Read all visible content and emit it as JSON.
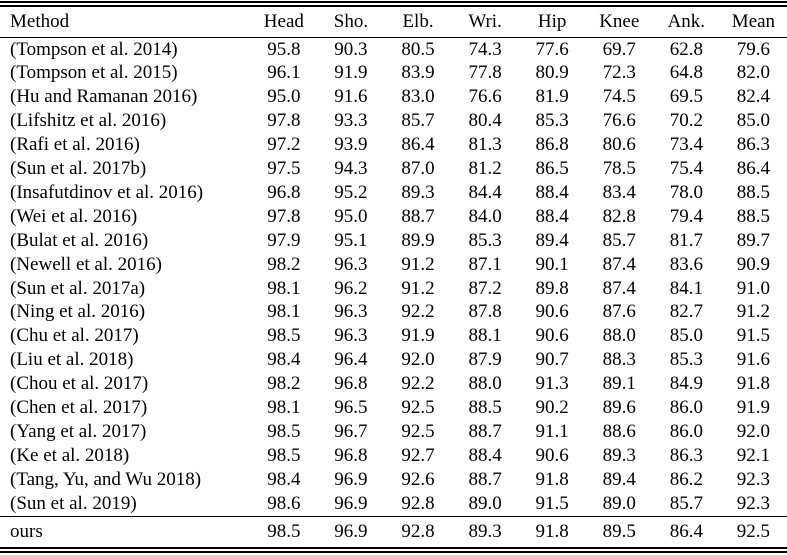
{
  "table": {
    "columns": [
      "Method",
      "Head",
      "Sho.",
      "Elb.",
      "Wri.",
      "Hip",
      "Knee",
      "Ank.",
      "Mean"
    ],
    "rows": [
      {
        "method": "(Tompson et al. 2014)",
        "values": [
          "95.8",
          "90.3",
          "80.5",
          "74.3",
          "77.6",
          "69.7",
          "62.8",
          "79.6"
        ]
      },
      {
        "method": "(Tompson et al. 2015)",
        "values": [
          "96.1",
          "91.9",
          "83.9",
          "77.8",
          "80.9",
          "72.3",
          "64.8",
          "82.0"
        ]
      },
      {
        "method": "(Hu and Ramanan 2016)",
        "values": [
          "95.0",
          "91.6",
          "83.0",
          "76.6",
          "81.9",
          "74.5",
          "69.5",
          "82.4"
        ]
      },
      {
        "method": "(Lifshitz et al. 2016)",
        "values": [
          "97.8",
          "93.3",
          "85.7",
          "80.4",
          "85.3",
          "76.6",
          "70.2",
          "85.0"
        ]
      },
      {
        "method": "(Rafi et al. 2016)",
        "values": [
          "97.2",
          "93.9",
          "86.4",
          "81.3",
          "86.8",
          "80.6",
          "73.4",
          "86.3"
        ]
      },
      {
        "method": "(Sun et al. 2017b)",
        "values": [
          "97.5",
          "94.3",
          "87.0",
          "81.2",
          "86.5",
          "78.5",
          "75.4",
          "86.4"
        ]
      },
      {
        "method": "(Insafutdinov et al. 2016)",
        "values": [
          "96.8",
          "95.2",
          "89.3",
          "84.4",
          "88.4",
          "83.4",
          "78.0",
          "88.5"
        ]
      },
      {
        "method": "(Wei et al. 2016)",
        "values": [
          "97.8",
          "95.0",
          "88.7",
          "84.0",
          "88.4",
          "82.8",
          "79.4",
          "88.5"
        ]
      },
      {
        "method": "(Bulat et al. 2016)",
        "values": [
          "97.9",
          "95.1",
          "89.9",
          "85.3",
          "89.4",
          "85.7",
          "81.7",
          "89.7"
        ]
      },
      {
        "method": "(Newell et al. 2016)",
        "values": [
          "98.2",
          "96.3",
          "91.2",
          "87.1",
          "90.1",
          "87.4",
          "83.6",
          "90.9"
        ]
      },
      {
        "method": "(Sun et al. 2017a)",
        "values": [
          "98.1",
          "96.2",
          "91.2",
          "87.2",
          "89.8",
          "87.4",
          "84.1",
          "91.0"
        ]
      },
      {
        "method": "(Ning et al. 2016)",
        "values": [
          "98.1",
          "96.3",
          "92.2",
          "87.8",
          "90.6",
          "87.6",
          "82.7",
          "91.2"
        ]
      },
      {
        "method": "(Chu et al. 2017)",
        "values": [
          "98.5",
          "96.3",
          "91.9",
          "88.1",
          "90.6",
          "88.0",
          "85.0",
          "91.5"
        ]
      },
      {
        "method": "(Liu et al. 2018)",
        "values": [
          "98.4",
          "96.4",
          "92.0",
          "87.9",
          "90.7",
          "88.3",
          "85.3",
          "91.6"
        ]
      },
      {
        "method": "(Chou et al. 2017)",
        "values": [
          "98.2",
          "96.8",
          "92.2",
          "88.0",
          "91.3",
          "89.1",
          "84.9",
          "91.8"
        ]
      },
      {
        "method": "(Chen et al. 2017)",
        "values": [
          "98.1",
          "96.5",
          "92.5",
          "88.5",
          "90.2",
          "89.6",
          "86.0",
          "91.9"
        ]
      },
      {
        "method": "(Yang et al. 2017)",
        "values": [
          "98.5",
          "96.7",
          "92.5",
          "88.7",
          "91.1",
          "88.6",
          "86.0",
          "92.0"
        ]
      },
      {
        "method": "(Ke et al. 2018)",
        "values": [
          "98.5",
          "96.8",
          "92.7",
          "88.4",
          "90.6",
          "89.3",
          "86.3",
          "92.1"
        ]
      },
      {
        "method": "(Tang, Yu, and Wu 2018)",
        "values": [
          "98.4",
          "96.9",
          "92.6",
          "88.7",
          "91.8",
          "89.4",
          "86.2",
          "92.3"
        ]
      },
      {
        "method": "(Sun et al. 2019)",
        "values": [
          "98.6",
          "96.9",
          "92.8",
          "89.0",
          "91.5",
          "89.0",
          "85.7",
          "92.3"
        ]
      }
    ],
    "footer_row": {
      "method": "ours",
      "values": [
        "98.5",
        "96.9",
        "92.8",
        "89.3",
        "91.8",
        "89.5",
        "86.4",
        "92.5"
      ],
      "bold_value_indices": [
        3,
        6,
        7
      ]
    }
  }
}
